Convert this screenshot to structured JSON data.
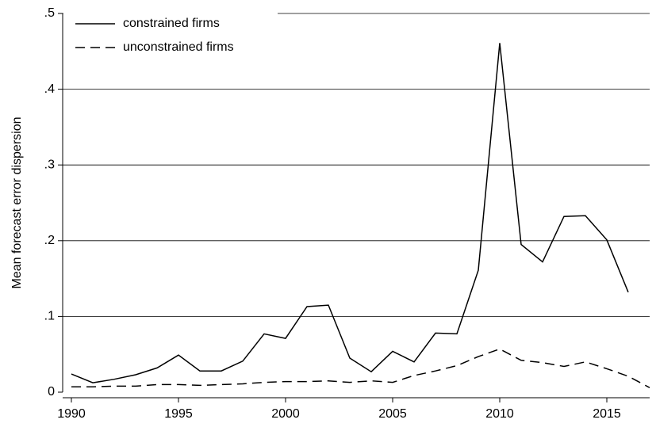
{
  "chart_data": {
    "type": "line",
    "y_label": "Mean forecast error dispersion",
    "x": [
      1990,
      1991,
      1992,
      1993,
      1994,
      1995,
      1996,
      1997,
      1998,
      1999,
      2000,
      2001,
      2002,
      2003,
      2004,
      2005,
      2006,
      2007,
      2008,
      2009,
      2010,
      2011,
      2012,
      2013,
      2014,
      2015,
      2016,
      2017
    ],
    "series": [
      {
        "name": "constrained firms",
        "color": "#000000",
        "line_style": "solid",
        "values": [
          0.024,
          0.0125,
          0.017,
          0.023,
          0.032,
          0.049,
          0.028,
          0.028,
          0.041,
          0.077,
          0.071,
          0.113,
          0.115,
          0.045,
          0.027,
          0.054,
          0.04,
          0.078,
          0.077,
          0.161,
          0.461,
          0.195,
          0.172,
          0.232,
          0.233,
          0.201,
          0.132,
          null
        ]
      },
      {
        "name": "unconstrained firms",
        "color": "#000000",
        "line_style": "dashed",
        "values": [
          0.007,
          0.007,
          0.008,
          0.008,
          0.01,
          0.01,
          0.009,
          0.01,
          0.011,
          0.013,
          0.014,
          0.014,
          0.015,
          0.013,
          0.015,
          0.013,
          0.022,
          0.028,
          0.035,
          0.047,
          0.057,
          0.042,
          0.039,
          0.034,
          0.04,
          0.031,
          0.021,
          0.006
        ]
      }
    ],
    "xlim": [
      1990,
      2017
    ],
    "xticks": [
      1990,
      1995,
      2000,
      2005,
      2010,
      2015
    ],
    "ylim": [
      0,
      0.5
    ],
    "yticks": [
      0,
      {
        "value": 0.1,
        "label": ".1"
      },
      {
        "value": 0.2,
        "label": ".2"
      },
      {
        "value": 0.3,
        "label": ".3"
      },
      {
        "value": 0.4,
        "label": ".4"
      },
      {
        "value": 0.5,
        "label": ".5"
      }
    ],
    "grid": true,
    "legend": "top-left"
  }
}
